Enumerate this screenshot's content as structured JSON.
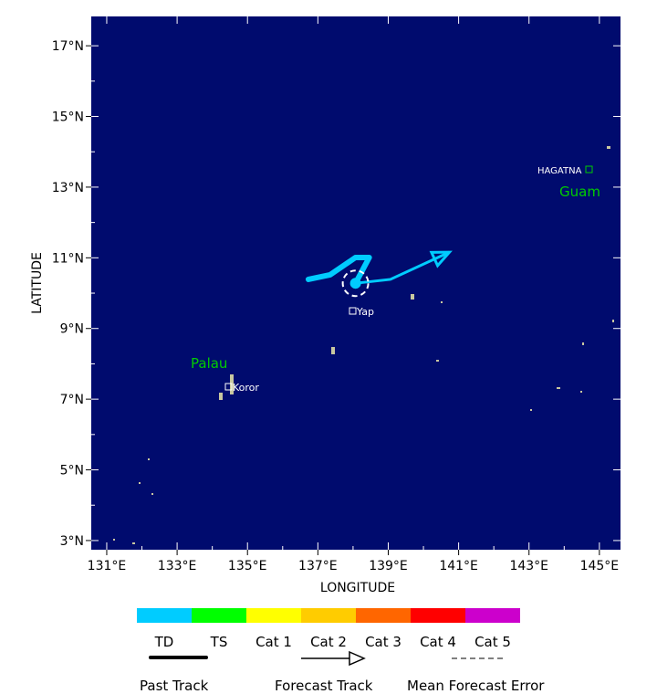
{
  "map": {
    "background": "#000b6e",
    "xlabel": "LONGITUDE",
    "ylabel": "LATITUDE",
    "lon_ticks": [
      "131°E",
      "133°E",
      "135°E",
      "137°E",
      "139°E",
      "141°E",
      "143°E",
      "145°E"
    ],
    "lat_ticks": [
      "17°N",
      "15°N",
      "13°N",
      "11°N",
      "9°N",
      "7°N",
      "5°N",
      "3°N"
    ],
    "lon_range": [
      130.56,
      145.6
    ],
    "lat_range": [
      2.74,
      17.83
    ],
    "regions": [
      {
        "name": "Guam",
        "color": "#00cc00"
      },
      {
        "name": "Palau",
        "color": "#00cc00"
      }
    ],
    "cities": [
      {
        "name": "HAGATNA"
      },
      {
        "name": "Koror"
      },
      {
        "name": "Yap"
      }
    ],
    "track_color": "#00ccff",
    "past_track": [
      [
        136.73,
        10.39
      ],
      [
        137.35,
        10.52
      ],
      [
        138.07,
        11.01
      ],
      [
        138.46,
        11.01
      ],
      [
        138.07,
        10.28
      ]
    ],
    "forecast_track": [
      [
        138.07,
        10.28
      ],
      [
        139.06,
        10.39
      ],
      [
        140.74,
        11.16
      ]
    ],
    "current_position": [
      138.07,
      10.28
    ]
  },
  "legend": {
    "categories": [
      {
        "label": "TD",
        "color": "#00ccff"
      },
      {
        "label": "TS",
        "color": "#00ff00"
      },
      {
        "label": "Cat 1",
        "color": "#ffff00"
      },
      {
        "label": "Cat 2",
        "color": "#ffcc00"
      },
      {
        "label": "Cat 3",
        "color": "#ff6600"
      },
      {
        "label": "Cat 4",
        "color": "#ff0000"
      },
      {
        "label": "Cat 5",
        "color": "#cc00cc"
      }
    ],
    "past_track": "Past Track",
    "forecast_track": "Forecast Track",
    "error": "Mean Forecast Error"
  }
}
